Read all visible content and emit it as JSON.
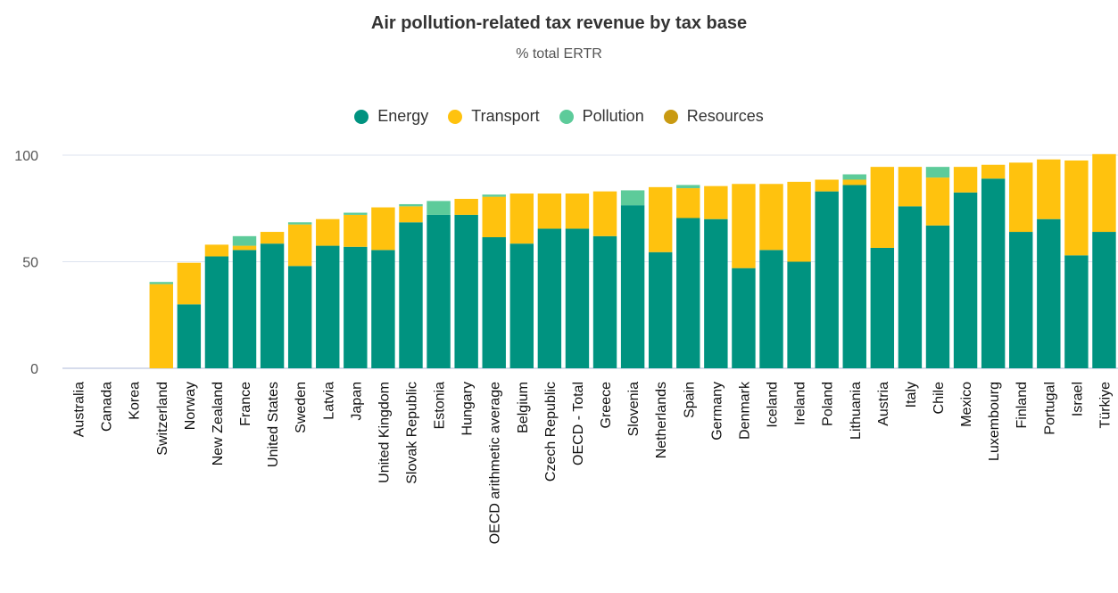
{
  "chart_data": {
    "type": "bar",
    "stacked": true,
    "title": "Air pollution-related tax revenue by tax base",
    "subtitle": "% total ERTR",
    "xlabel": "",
    "ylabel": "",
    "ylim": [
      0,
      100
    ],
    "yticks": [
      0,
      50,
      100
    ],
    "grid": true,
    "legend_position": "top",
    "categories": [
      "Australia",
      "Canada",
      "Korea",
      "Switzerland",
      "Norway",
      "New Zealand",
      "France",
      "United States",
      "Sweden",
      "Latvia",
      "Japan",
      "United Kingdom",
      "Slovak Republic",
      "Estonia",
      "Hungary",
      "OECD arithmetic average",
      "Belgium",
      "Czech Republic",
      "OECD - Total",
      "Greece",
      "Slovenia",
      "Netherlands",
      "Spain",
      "Germany",
      "Denmark",
      "Iceland",
      "Ireland",
      "Poland",
      "Lithuania",
      "Austria",
      "Italy",
      "Chile",
      "Mexico",
      "Luxembourg",
      "Finland",
      "Portugal",
      "Israel",
      "Türkiye"
    ],
    "series": [
      {
        "name": "Energy",
        "color": "#009380",
        "values": [
          0,
          0,
          0,
          0,
          30,
          52.5,
          55.5,
          58.5,
          48,
          57.5,
          57,
          55.5,
          68.5,
          72,
          72,
          61.5,
          58.5,
          65.5,
          65.5,
          62,
          76.5,
          54.5,
          70.5,
          70,
          47,
          55.5,
          50,
          83,
          86,
          56.5,
          76,
          67,
          82.5,
          89,
          64,
          70,
          53,
          64
        ]
      },
      {
        "name": "Transport",
        "color": "#FFC20E",
        "values": [
          0,
          0,
          0,
          39.5,
          19.5,
          5.5,
          2,
          5.5,
          19.5,
          12.5,
          15,
          20,
          7.5,
          0,
          7.5,
          19,
          23.5,
          16.5,
          16.5,
          21,
          0,
          30.5,
          14,
          15.5,
          39.5,
          31,
          37.5,
          5.5,
          2.5,
          38,
          18.5,
          22.5,
          12,
          6.5,
          32.5,
          28,
          44.5,
          36.5
        ]
      },
      {
        "name": "Pollution",
        "color": "#5DCB9A",
        "values": [
          0,
          0,
          0,
          1,
          0,
          0,
          4.5,
          0,
          1,
          0,
          1,
          0,
          1,
          6.5,
          0,
          1,
          0,
          0,
          0,
          0,
          7,
          0,
          1.5,
          0,
          0,
          0,
          0,
          0,
          2.5,
          0,
          0,
          5,
          0,
          0,
          0,
          0,
          0,
          0
        ]
      },
      {
        "name": "Resources",
        "color": "#C99A12",
        "values": [
          0,
          0,
          0,
          0,
          0,
          0,
          0,
          0,
          0,
          0,
          0,
          0,
          0,
          0,
          0,
          0,
          0,
          0,
          0,
          0,
          0,
          0,
          0,
          0,
          0,
          0,
          0,
          0,
          0,
          0,
          0,
          0,
          0,
          0,
          0,
          0,
          0,
          0
        ]
      }
    ]
  }
}
